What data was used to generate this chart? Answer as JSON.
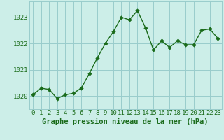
{
  "x": [
    0,
    1,
    2,
    3,
    4,
    5,
    6,
    7,
    8,
    9,
    10,
    11,
    12,
    13,
    14,
    15,
    16,
    17,
    18,
    19,
    20,
    21,
    22,
    23
  ],
  "y": [
    1020.05,
    1020.3,
    1020.25,
    1019.9,
    1020.05,
    1020.1,
    1020.3,
    1020.85,
    1021.45,
    1022.0,
    1022.45,
    1023.0,
    1022.9,
    1023.25,
    1022.6,
    1021.75,
    1022.1,
    1021.85,
    1022.1,
    1021.95,
    1021.95,
    1022.5,
    1022.55,
    1022.2
  ],
  "line_color": "#1a6b1a",
  "marker_color": "#1a6b1a",
  "bg_color": "#cceee8",
  "grid_color": "#99cccc",
  "xlabel": "Graphe pression niveau de la mer (hPa)",
  "xlabel_color": "#1a6b1a",
  "ylim": [
    1019.5,
    1023.6
  ],
  "xlim": [
    -0.5,
    23.5
  ],
  "yticks": [
    1020,
    1021,
    1022,
    1023
  ],
  "xticks": [
    0,
    1,
    2,
    3,
    4,
    5,
    6,
    7,
    8,
    9,
    10,
    11,
    12,
    13,
    14,
    15,
    16,
    17,
    18,
    19,
    20,
    21,
    22,
    23
  ],
  "tick_label_color": "#1a6b1a",
  "tick_label_fontsize": 6.5,
  "xlabel_fontsize": 7.5,
  "marker_size": 2.8,
  "line_width": 1.0
}
